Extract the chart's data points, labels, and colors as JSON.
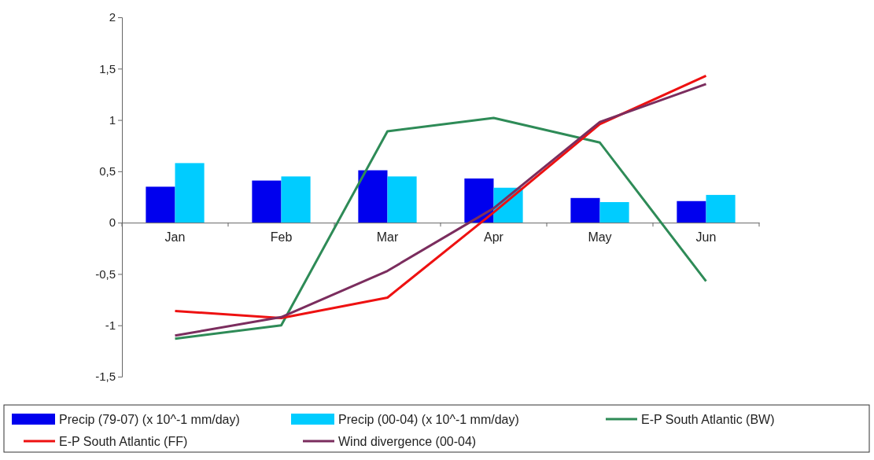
{
  "chart_data": {
    "type": "bar",
    "categories": [
      "Jan",
      "Feb",
      "Mar",
      "Apr",
      "May",
      "Jun"
    ],
    "series": [
      {
        "name": "Precip (79-07) (x 10^-1 mm/day)",
        "color": "#0000ee",
        "values": [
          0.35,
          0.41,
          0.51,
          0.43,
          0.24,
          0.21
        ]
      },
      {
        "name": "Precip (00-04) (x 10^-1 mm/day)",
        "color": "#00ccff",
        "values": [
          0.58,
          0.45,
          0.45,
          0.34,
          0.2,
          0.27
        ]
      },
      {
        "name": "E-P South Atlantic (BW)",
        "type": "line",
        "color": "#2e8b57",
        "values": [
          -1.13,
          -1.0,
          0.89,
          1.02,
          0.78,
          -0.57
        ]
      },
      {
        "name": "E-P South Atlantic (FF)",
        "type": "line",
        "color": "#ee1111",
        "values": [
          -0.86,
          -0.93,
          -0.73,
          0.1,
          0.96,
          1.43
        ]
      },
      {
        "name": "Wind divergence (00-04)",
        "type": "line",
        "color": "#7b2d5e",
        "values": [
          -1.1,
          -0.92,
          -0.47,
          0.14,
          0.98,
          1.35
        ]
      }
    ],
    "ylim": [
      -1.5,
      2
    ],
    "yticks": [
      {
        "value": -1.5,
        "label": "-1,5"
      },
      -1,
      {
        "value": -0.5,
        "label": "-0,5"
      },
      0,
      {
        "value": 0.5,
        "label": "0,5"
      },
      1,
      {
        "value": 1.5,
        "label": "1,5"
      },
      2
    ],
    "grid": false,
    "legend": "bottom",
    "marker": "none",
    "line_style": "solid"
  }
}
